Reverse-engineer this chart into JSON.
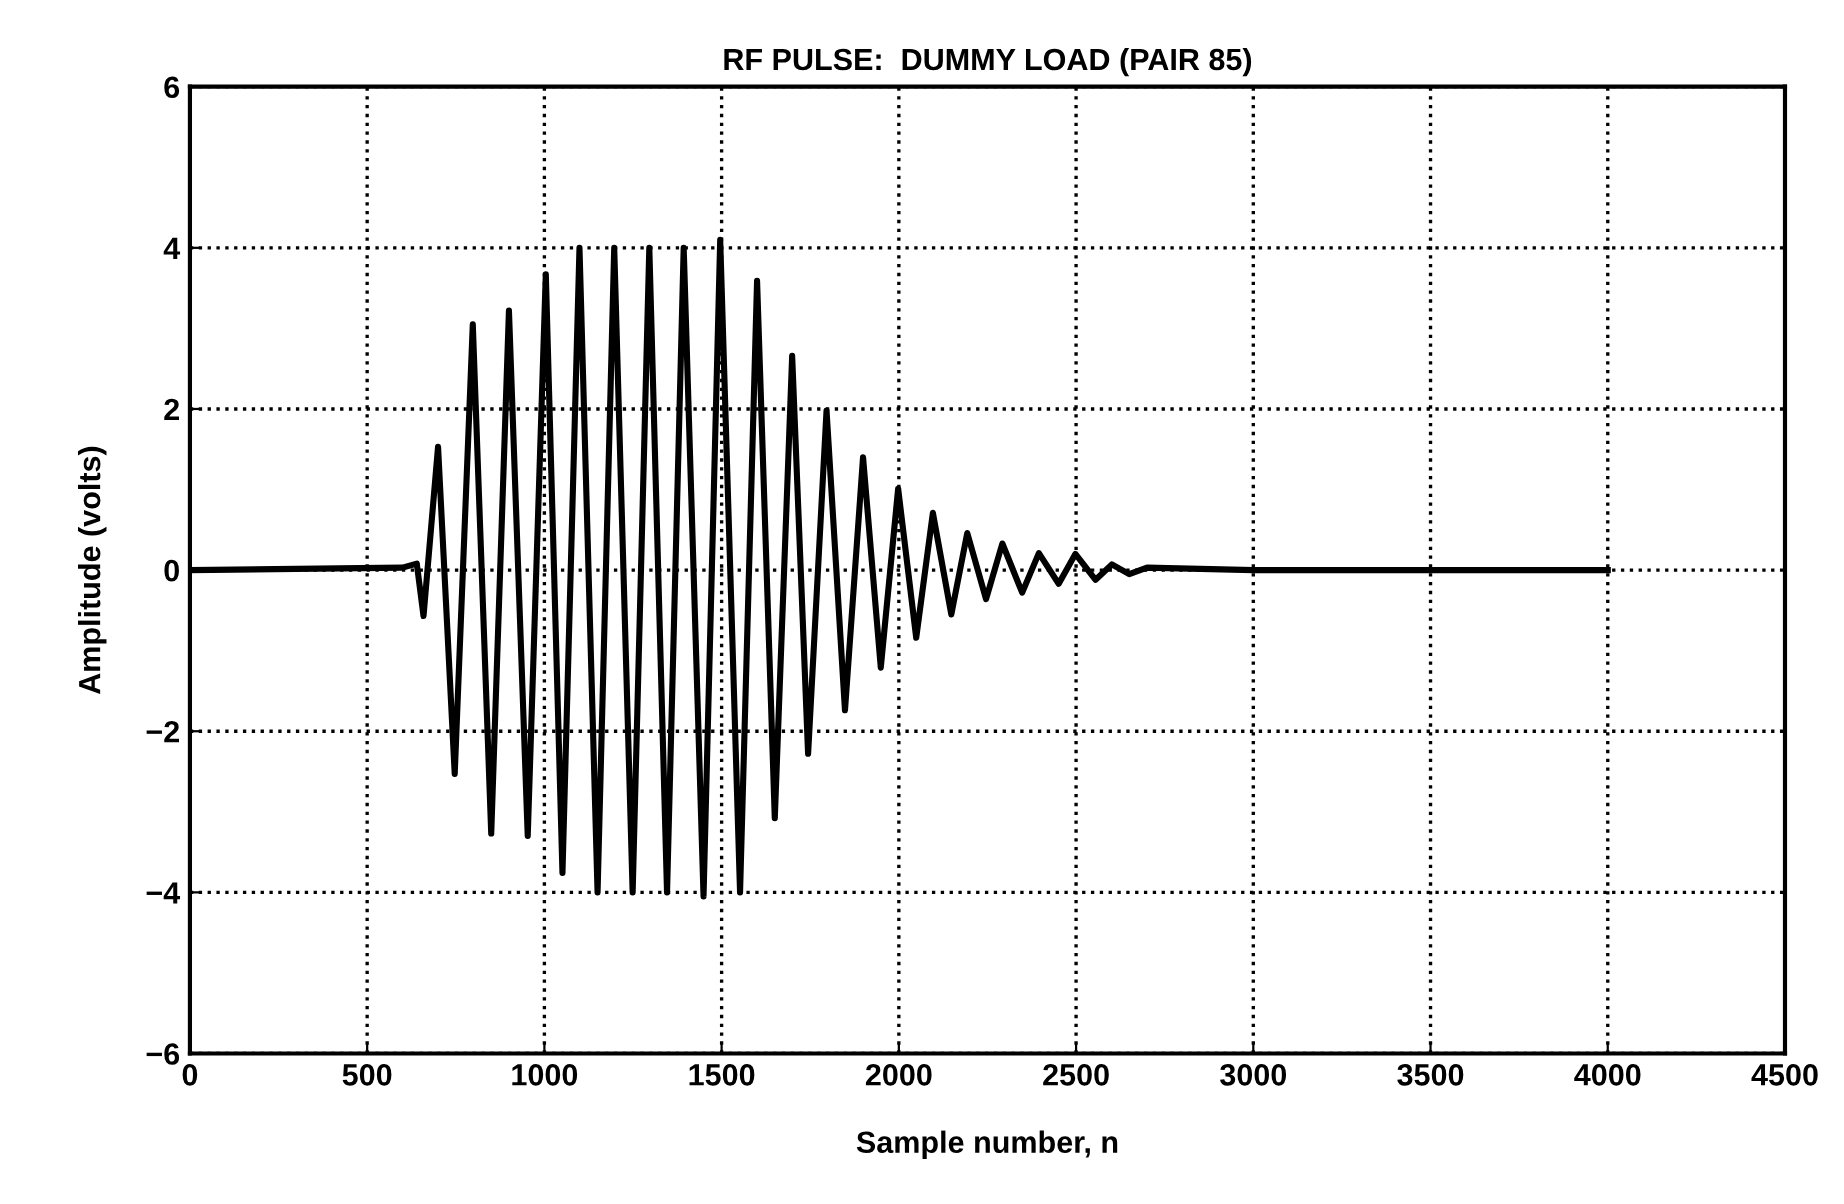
{
  "chart_data": {
    "type": "line",
    "title": "RF PULSE:  DUMMY LOAD (PAIR 85)",
    "xlabel": "Sample number, n",
    "ylabel": "Amplitude (volts)",
    "xlim": [
      0,
      4500
    ],
    "ylim": [
      -6,
      6
    ],
    "xticks": [
      0,
      500,
      1000,
      1500,
      2000,
      2500,
      3000,
      3500,
      4000,
      4500
    ],
    "yticks": [
      -6,
      -4,
      -2,
      0,
      2,
      4,
      6
    ],
    "grid": true,
    "marker": "none",
    "line_style": "solid",
    "series": [
      {
        "color": "#000000",
        "x": [
          0,
          600,
          640,
          659,
          700,
          747,
          798,
          850,
          900,
          953,
          1004,
          1051,
          1099,
          1150,
          1197,
          1249,
          1296,
          1346,
          1393,
          1449,
          1496,
          1552,
          1600,
          1650,
          1699,
          1744,
          1796,
          1848,
          1899,
          1949,
          1998,
          2049,
          2096,
          2148,
          2193,
          2246,
          2292,
          2348,
          2395,
          2451,
          2498,
          2555,
          2601,
          2650,
          2700,
          3000,
          4000
        ],
        "values": [
          0,
          0.03,
          0.08,
          -0.57,
          1.53,
          -2.53,
          3.05,
          -3.27,
          3.22,
          -3.3,
          3.67,
          -3.76,
          4.0,
          -4.0,
          4.0,
          -4.0,
          4.0,
          -4.0,
          4.0,
          -4.05,
          4.1,
          -4.0,
          3.59,
          -3.08,
          2.66,
          -2.28,
          1.98,
          -1.74,
          1.4,
          -1.21,
          1.01,
          -0.84,
          0.71,
          -0.55,
          0.46,
          -0.36,
          0.33,
          -0.28,
          0.21,
          -0.17,
          0.2,
          -0.12,
          0.07,
          -0.05,
          0.03,
          0,
          0
        ]
      }
    ]
  }
}
